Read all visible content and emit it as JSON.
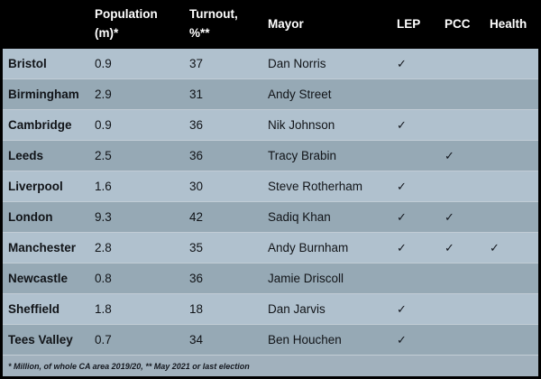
{
  "header": {
    "city": "",
    "population_line1": "Population",
    "population_line2": "(m)*",
    "turnout_line1": "Turnout,",
    "turnout_line2": "%**",
    "mayor": "Mayor",
    "lep": "LEP",
    "pcc": "PCC",
    "health": "Health"
  },
  "chart_data": {
    "type": "table",
    "columns": [
      "",
      "Population (m)*",
      "Turnout, %**",
      "Mayor",
      "LEP",
      "PCC",
      "Health"
    ],
    "rows": [
      [
        "Bristol",
        "0.9",
        "37",
        "Dan Norris",
        "✓",
        "",
        ""
      ],
      [
        "Birmingham",
        "2.9",
        "31",
        "Andy Street",
        "",
        "",
        ""
      ],
      [
        "Cambridge",
        "0.9",
        "36",
        "Nik Johnson",
        "✓",
        "",
        ""
      ],
      [
        "Leeds",
        "2.5",
        "36",
        "Tracy Brabin",
        "",
        "✓",
        ""
      ],
      [
        "Liverpool",
        "1.6",
        "30",
        "Steve Rotherham",
        "✓",
        "",
        ""
      ],
      [
        "London",
        "9.3",
        "42",
        "Sadiq Khan",
        "✓",
        "✓",
        ""
      ],
      [
        "Manchester",
        "2.8",
        "35",
        "Andy Burnham",
        "✓",
        "✓",
        "✓"
      ],
      [
        "Newcastle",
        "0.8",
        "36",
        "Jamie Driscoll",
        "",
        "",
        ""
      ],
      [
        "Sheffield",
        "1.8",
        "18",
        "Dan Jarvis",
        "✓",
        "",
        ""
      ],
      [
        "Tees Valley",
        "0.7",
        "34",
        "Ben Houchen",
        "✓",
        "",
        ""
      ]
    ],
    "footnote": "* Million, of whole CA area 2019/20, ** May 2021 or last election"
  },
  "colors": {
    "header_bg": "#000000",
    "header_text": "#ffffff",
    "row_light": "#b0c1ce",
    "row_dark": "#96a9b5",
    "divider": "#c2cdd6",
    "footer_bg": "#a1b1bd",
    "body_text": "#111418"
  }
}
